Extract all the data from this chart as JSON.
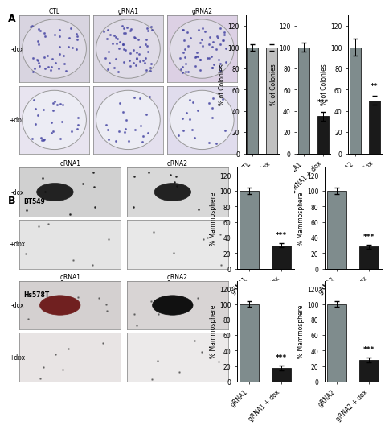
{
  "panel_A_label": "A",
  "panel_B_label": "B",
  "bar_color_gray": "#7f8c8d",
  "bar_color_black": "#1a1a1a",
  "bar_color_light": "#c8c8c8",
  "chart_background": "#ffffff",
  "section_A": {
    "chart1": {
      "categories": [
        "CTL",
        "CTL + dox"
      ],
      "values": [
        100,
        100
      ],
      "errors": [
        3,
        3
      ],
      "colors": [
        "#7f8c8d",
        "#c0c0c0"
      ],
      "ylabel": "% of Colonies",
      "ylim": [
        0,
        130
      ],
      "yticks": [
        0,
        20,
        40,
        60,
        80,
        100,
        120
      ],
      "significance": ""
    },
    "chart2": {
      "categories": [
        "gRNA1",
        "gRNA1 + dox"
      ],
      "values": [
        100,
        35
      ],
      "errors": [
        4,
        4
      ],
      "colors": [
        "#7f8c8d",
        "#1a1a1a"
      ],
      "ylabel": "% of Colonies",
      "ylim": [
        0,
        130
      ],
      "yticks": [
        0,
        20,
        40,
        60,
        80,
        100,
        120
      ],
      "significance": "***"
    },
    "chart3": {
      "categories": [
        "gRNA2",
        "gRNA2 + dox"
      ],
      "values": [
        100,
        50
      ],
      "errors": [
        8,
        4
      ],
      "colors": [
        "#7f8c8d",
        "#1a1a1a"
      ],
      "ylabel": "% of Colonies",
      "ylim": [
        0,
        130
      ],
      "yticks": [
        0,
        20,
        40,
        60,
        80,
        100,
        120
      ],
      "significance": "**"
    }
  },
  "section_B_BT549": {
    "chart1": {
      "categories": [
        "gRNA1",
        "gRNA1 + dox"
      ],
      "values": [
        100,
        30
      ],
      "errors": [
        4,
        3
      ],
      "colors": [
        "#7f8c8d",
        "#1a1a1a"
      ],
      "ylabel": "% Mammosphere",
      "ylim": [
        0,
        130
      ],
      "yticks": [
        0,
        20,
        40,
        60,
        80,
        100,
        120
      ],
      "significance": "***"
    },
    "chart2": {
      "categories": [
        "gRNA2",
        "gRNA2 + dox"
      ],
      "values": [
        100,
        28
      ],
      "errors": [
        4,
        3
      ],
      "colors": [
        "#7f8c8d",
        "#1a1a1a"
      ],
      "ylabel": "% Mammosphere",
      "ylim": [
        0,
        130
      ],
      "yticks": [
        0,
        20,
        40,
        60,
        80,
        100,
        120
      ],
      "significance": "***"
    }
  },
  "section_B_Hs578T": {
    "chart1": {
      "categories": [
        "gRNA1",
        "gRNA1 + dox"
      ],
      "values": [
        100,
        18
      ],
      "errors": [
        4,
        3
      ],
      "colors": [
        "#7f8c8d",
        "#1a1a1a"
      ],
      "ylabel": "% Mammosphere",
      "ylim": [
        0,
        130
      ],
      "yticks": [
        0,
        20,
        40,
        60,
        80,
        100,
        120
      ],
      "significance": "***"
    },
    "chart2": {
      "categories": [
        "gRNA2",
        "gRNA2 + dox"
      ],
      "values": [
        100,
        28
      ],
      "errors": [
        4,
        3
      ],
      "colors": [
        "#7f8c8d",
        "#1a1a1a"
      ],
      "ylabel": "% Mammosphere",
      "ylim": [
        0,
        130
      ],
      "yticks": [
        0,
        20,
        40,
        60,
        80,
        100,
        120
      ],
      "significance": "***"
    }
  },
  "image_labels": {
    "A_col_labels": [
      "CTL",
      "gRNA1",
      "gRNA2"
    ],
    "A_row_labels": [
      "-dox",
      "+dox"
    ],
    "B_col_labels_BT549": [
      "gRNA1",
      "gRNA2"
    ],
    "B_row_labels_BT549": [
      "-dox",
      "+dox"
    ],
    "B_col_labels_Hs578T": [
      "gRNA1",
      "gRNA2"
    ],
    "B_row_labels_Hs578T": [
      "-dox",
      "+dox"
    ]
  }
}
